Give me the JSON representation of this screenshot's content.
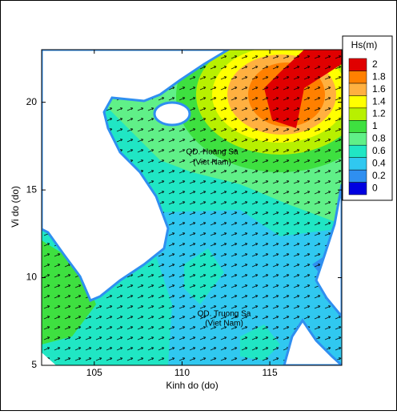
{
  "chart_data": {
    "type": "contour",
    "xlabel": "Kinh do (do)",
    "ylabel": "Vi do (do)",
    "xlim": [
      102,
      119.1
    ],
    "ylim": [
      5,
      23
    ],
    "xticks": [
      105,
      110,
      115
    ],
    "yticks": [
      5,
      10,
      15,
      20
    ],
    "colorbar": {
      "title": "Hs(m)",
      "levels": [
        0,
        0.2,
        0.4,
        0.6,
        0.8,
        1,
        1.2,
        1.4,
        1.6,
        1.8,
        2
      ],
      "colors": [
        "#0000e0",
        "#2f8ff0",
        "#30c8f0",
        "#20e6c4",
        "#60f088",
        "#3ee040",
        "#b8f000",
        "#ffff00",
        "#ffb040",
        "#ff8000",
        "#e00000"
      ]
    },
    "annotations": [
      "QD. Hoang Sa",
      "(Viet Nam)",
      "QD. Truong Sa",
      "(Viet Nam)"
    ]
  }
}
